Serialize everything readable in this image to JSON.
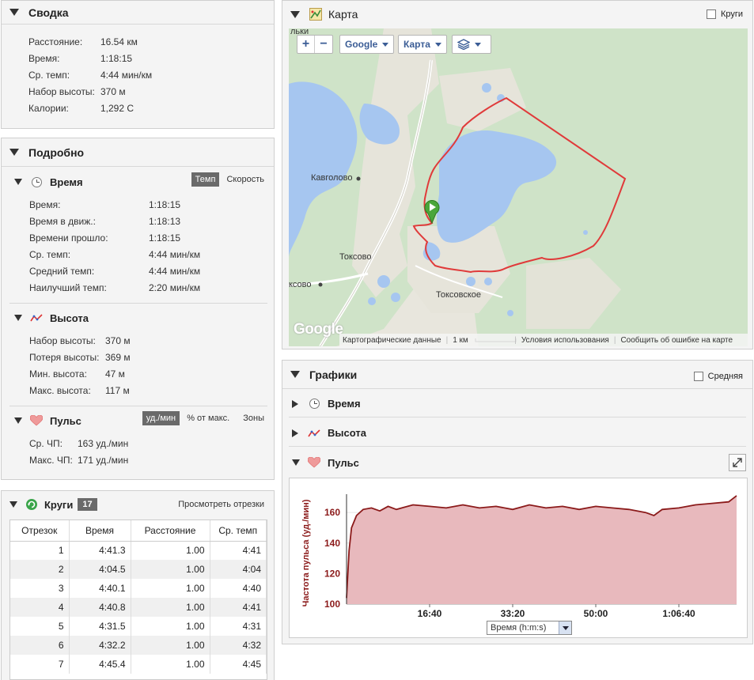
{
  "summary": {
    "title": "Сводка",
    "rows": [
      {
        "k": "Расстояние:",
        "v": "16.54 км"
      },
      {
        "k": "Время:",
        "v": "1:18:15"
      },
      {
        "k": "Ср. темп:",
        "v": "4:44 мин/км"
      },
      {
        "k": "Набор высоты:",
        "v": "370 м"
      },
      {
        "k": "Калории:",
        "v": "1,292 C"
      }
    ]
  },
  "details": {
    "title": "Подробно",
    "time": {
      "title": "Время",
      "toggle_on": "Темп",
      "toggle_off": "Скорость",
      "rows": [
        {
          "k": "Время:",
          "v": "1:18:15"
        },
        {
          "k": "Время в движ.:",
          "v": "1:18:13"
        },
        {
          "k": "Времени прошло:",
          "v": "1:18:15"
        },
        {
          "k": "Ср. темп:",
          "v": "4:44 мин/км"
        },
        {
          "k": "Средний темп:",
          "v": "4:44 мин/км"
        },
        {
          "k": "Наилучший темп:",
          "v": "2:20 мин/км"
        }
      ]
    },
    "elevation": {
      "title": "Высота",
      "rows": [
        {
          "k": "Набор высоты:",
          "v": "370 м"
        },
        {
          "k": "Потеря высоты:",
          "v": "369 м"
        },
        {
          "k": "Мин. высота:",
          "v": "47 м"
        },
        {
          "k": "Макс. высота:",
          "v": "117 м"
        }
      ]
    },
    "hr": {
      "title": "Пульс",
      "toggle_on": "уд./мин",
      "toggle_mid": "% от макс.",
      "toggle_off": "Зоны",
      "rows": [
        {
          "k": "Ср. ЧП:",
          "v": "163 уд./мин"
        },
        {
          "k": "Макс. ЧП:",
          "v": "171 уд./мин"
        }
      ]
    }
  },
  "laps": {
    "title": "Круги",
    "count": "17",
    "link": "Просмотреть отрезки",
    "headers": [
      "Отрезок",
      "Время",
      "Расстояние",
      "Ср. темп"
    ],
    "rows": [
      [
        "1",
        "4:41.3",
        "1.00",
        "4:41"
      ],
      [
        "2",
        "4:04.5",
        "1.00",
        "4:04"
      ],
      [
        "3",
        "4:40.1",
        "1.00",
        "4:40"
      ],
      [
        "4",
        "4:40.8",
        "1.00",
        "4:41"
      ],
      [
        "5",
        "4:31.5",
        "1.00",
        "4:31"
      ],
      [
        "6",
        "4:32.2",
        "1.00",
        "4:32"
      ],
      [
        "7",
        "4:45.4",
        "1.00",
        "4:45"
      ]
    ]
  },
  "map": {
    "title": "Карта",
    "laps_checkbox": "Круги",
    "provider": "Google",
    "type": "Карта",
    "labels": {
      "kavgolovo": "Кавголово",
      "toksovo": "Токсово",
      "toksovo_left": "ксово",
      "toksovskoe": "Токсовское",
      "top_left": "льки"
    },
    "footer": {
      "data": "Картографические данные",
      "scale": "1 км",
      "terms": "Условия использования",
      "report": "Сообщить об ошибке на карте"
    },
    "logo": "Google",
    "colors": {
      "water": "#a6c6f0",
      "forest": "#cde3c6",
      "land": "#e8e6dd",
      "route": "#e03a3a"
    }
  },
  "graphs": {
    "title": "Графики",
    "avg_checkbox": "Средняя",
    "rows": [
      "Время",
      "Высота",
      "Пульс"
    ],
    "axis_select": "Время (h:m:s)"
  },
  "chart_data": {
    "type": "area",
    "title": "",
    "ylabel": "Частота пульса (уд./мин)",
    "xlabel": "Время (h:m:s)",
    "ylim": [
      100,
      172
    ],
    "yticks": [
      100,
      120,
      140,
      160
    ],
    "xticks": [
      "16:40",
      "33:20",
      "50:00",
      "1:06:40"
    ],
    "xtick_seconds": [
      1000,
      2000,
      3000,
      4000
    ],
    "xlim": [
      0,
      4695
    ],
    "color": "#8b1a1a",
    "fill": "#e8b9bd",
    "series": [
      {
        "x": [
          0,
          30,
          60,
          120,
          200,
          300,
          400,
          500,
          600,
          800,
          1000,
          1200,
          1400,
          1600,
          1800,
          2000,
          2200,
          2400,
          2600,
          2800,
          3000,
          3200,
          3400,
          3600,
          3700,
          3800,
          4000,
          4200,
          4400,
          4600,
          4695
        ],
        "y": [
          104,
          135,
          150,
          158,
          162,
          163,
          161,
          164,
          162,
          165,
          164,
          163,
          165,
          163,
          164,
          162,
          165,
          163,
          164,
          162,
          164,
          163,
          162,
          160,
          158,
          162,
          163,
          165,
          166,
          167,
          171
        ]
      }
    ]
  }
}
